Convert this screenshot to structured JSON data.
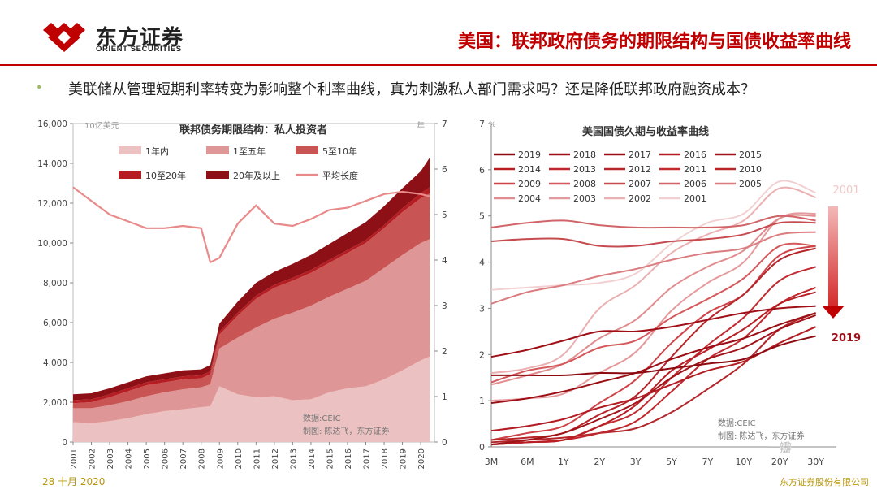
{
  "header": {
    "logo_cn": "东方证券",
    "logo_en": "ORIENT SECURITIES",
    "title": "美国：联邦政府债务的期限结构与国债收益率曲线",
    "bullet": "美联储从管理短期利率转变为影响整个利率曲线，真为刺激私人部门需求吗？还是降低联邦政府融资成本？"
  },
  "footer": {
    "date": "28 十月 2020",
    "company": "东方证券股份有限公司"
  },
  "watermark": "一瓣",
  "colors": {
    "accent": "#c00000",
    "footer": "#b8960c"
  },
  "chart_data": [
    {
      "type": "area",
      "title": "联邦债务期限结构：私人投资者",
      "unit_left": "10亿美元",
      "unit_right": "年",
      "source": "数据:CEIC",
      "credit": "制图: 陈达飞，东方证券",
      "x_ticks": [
        "2001",
        "2002",
        "2003",
        "2004",
        "2005",
        "2006",
        "2007",
        "2008",
        "2009",
        "2010",
        "2011",
        "2012",
        "2013",
        "2014",
        "2015",
        "2016",
        "2017",
        "2018",
        "2019",
        "2020"
      ],
      "y_left_ticks": [
        "0",
        "2,000",
        "4,000",
        "6,000",
        "8,000",
        "10,000",
        "12,000",
        "14,000",
        "16,000"
      ],
      "y_right_ticks": [
        "0",
        "1",
        "2",
        "3",
        "4",
        "5",
        "6",
        "7"
      ],
      "ylim_left": [
        0,
        16000
      ],
      "ylim_right": [
        0,
        7
      ],
      "xlim": [
        2001,
        2020.75
      ],
      "legend": [
        {
          "label": "1年内",
          "color": "#ebc1c1"
        },
        {
          "label": "1至五年",
          "color": "#df9696"
        },
        {
          "label": "5至10年",
          "color": "#c85454"
        },
        {
          "label": "10至20年",
          "color": "#b51d22"
        },
        {
          "label": "20年及以上",
          "color": "#8c1015"
        },
        {
          "label": "平均长度",
          "color": "#e88a8a"
        }
      ],
      "x": [
        2001,
        2002,
        2003,
        2004,
        2005,
        2006,
        2007,
        2008,
        2008.5,
        2009,
        2010,
        2011,
        2012,
        2013,
        2014,
        2015,
        2016,
        2017,
        2018,
        2019,
        2020,
        2020.5
      ],
      "series": [
        {
          "name": "1年内",
          "values": [
            1000,
            950,
            1050,
            1200,
            1400,
            1550,
            1650,
            1750,
            1800,
            2800,
            2400,
            2250,
            2300,
            2100,
            2150,
            2500,
            2700,
            2800,
            3150,
            3600,
            4100,
            4300
          ]
        },
        {
          "name": "1至五年",
          "values": [
            700,
            750,
            800,
            850,
            900,
            950,
            1000,
            1000,
            1100,
            1900,
            2850,
            3500,
            3900,
            4400,
            4700,
            4800,
            5000,
            5300,
            5600,
            5800,
            5900,
            5900
          ]
        },
        {
          "name": "5至10年",
          "values": [
            250,
            300,
            400,
            500,
            550,
            500,
            500,
            450,
            500,
            700,
            1100,
            1450,
            1550,
            1600,
            1650,
            1700,
            1800,
            1900,
            2000,
            2150,
            2250,
            2300
          ]
        },
        {
          "name": "10至20年",
          "values": [
            150,
            150,
            150,
            150,
            150,
            150,
            150,
            150,
            150,
            150,
            150,
            150,
            150,
            150,
            150,
            150,
            150,
            150,
            150,
            200,
            250,
            300
          ]
        },
        {
          "name": "20年及以上",
          "values": [
            300,
            300,
            300,
            300,
            300,
            300,
            300,
            300,
            320,
            400,
            550,
            650,
            650,
            700,
            750,
            800,
            850,
            900,
            950,
            1000,
            1100,
            1500
          ]
        },
        {
          "name": "平均长度",
          "axis": "right",
          "values": [
            5.6,
            5.3,
            5.0,
            4.85,
            4.7,
            4.7,
            4.75,
            4.7,
            3.95,
            4.05,
            4.8,
            5.2,
            4.8,
            4.75,
            4.9,
            5.1,
            5.15,
            5.3,
            5.45,
            5.5,
            5.45,
            5.4
          ]
        }
      ]
    },
    {
      "type": "line",
      "title": "美国国债久期与收益率曲线",
      "unit": "%",
      "source": "数据:CEIC",
      "credit": "制图: 陈达飞，东方证券",
      "categories": [
        "3M",
        "6M",
        "1Y",
        "2Y",
        "3Y",
        "5Y",
        "7Y",
        "10Y",
        "20Y",
        "30Y"
      ],
      "y_ticks": [
        "0",
        "1",
        "2",
        "3",
        "4",
        "5",
        "6",
        "7"
      ],
      "ylim": [
        0,
        7
      ],
      "annotation_top": "2001",
      "annotation_bottom": "2019",
      "series": [
        {
          "name": "2019",
          "color": "#8c0a10",
          "values": [
            1.55,
            1.55,
            1.55,
            1.6,
            1.6,
            1.7,
            1.8,
            1.9,
            2.2,
            2.4
          ]
        },
        {
          "name": "2018",
          "color": "#a10f16",
          "values": [
            1.95,
            2.1,
            2.3,
            2.5,
            2.5,
            2.6,
            2.75,
            2.9,
            3.0,
            3.05
          ]
        },
        {
          "name": "2017",
          "color": "#9a0d13",
          "values": [
            0.95,
            1.05,
            1.2,
            1.4,
            1.6,
            1.9,
            2.15,
            2.35,
            2.65,
            2.9
          ]
        },
        {
          "name": "2016",
          "color": "#b31c22",
          "values": [
            0.35,
            0.45,
            0.6,
            0.85,
            1.05,
            1.35,
            1.65,
            1.85,
            2.25,
            2.6
          ]
        },
        {
          "name": "2015",
          "color": "#a01419",
          "values": [
            0.05,
            0.15,
            0.3,
            0.6,
            0.95,
            1.5,
            1.9,
            2.15,
            2.55,
            2.85
          ]
        },
        {
          "name": "2014",
          "color": "#b81e24",
          "values": [
            0.05,
            0.1,
            0.15,
            0.45,
            0.9,
            1.65,
            2.1,
            2.55,
            3.1,
            3.35
          ]
        },
        {
          "name": "2013",
          "color": "#c0272d",
          "values": [
            0.05,
            0.1,
            0.15,
            0.3,
            0.55,
            1.2,
            1.9,
            2.35,
            3.1,
            3.45
          ]
        },
        {
          "name": "2012",
          "color": "#b3262b",
          "values": [
            0.1,
            0.15,
            0.2,
            0.3,
            0.4,
            0.75,
            1.25,
            1.8,
            2.55,
            2.9
          ]
        },
        {
          "name": "2011",
          "color": "#c02a30",
          "values": [
            0.05,
            0.1,
            0.15,
            0.45,
            0.75,
            1.5,
            2.2,
            2.8,
            3.6,
            3.9
          ]
        },
        {
          "name": "2010",
          "color": "#b5252a",
          "values": [
            0.15,
            0.2,
            0.3,
            0.7,
            1.1,
            1.95,
            2.75,
            3.3,
            4.05,
            4.3
          ]
        },
        {
          "name": "2009",
          "color": "#cd4347",
          "values": [
            0.15,
            0.3,
            0.45,
            0.95,
            1.45,
            2.25,
            2.9,
            3.3,
            4.15,
            4.35
          ]
        },
        {
          "name": "2008",
          "color": "#d5595c",
          "values": [
            1.4,
            1.65,
            1.8,
            2.15,
            2.3,
            2.8,
            3.2,
            3.65,
            4.35,
            4.35
          ]
        },
        {
          "name": "2007",
          "color": "#c54b4f",
          "values": [
            4.45,
            4.5,
            4.5,
            4.35,
            4.35,
            4.45,
            4.5,
            4.6,
            4.85,
            4.85
          ]
        },
        {
          "name": "2006",
          "color": "#d06468",
          "values": [
            4.75,
            4.85,
            4.9,
            4.8,
            4.75,
            4.75,
            4.75,
            4.8,
            5.0,
            4.9
          ]
        },
        {
          "name": "2005",
          "color": "#db7d80",
          "values": [
            3.1,
            3.35,
            3.5,
            3.7,
            3.85,
            4.05,
            4.2,
            4.3,
            4.6,
            4.65
          ]
        },
        {
          "name": "2004",
          "color": "#e18c8f",
          "values": [
            1.35,
            1.55,
            1.8,
            2.35,
            2.75,
            3.45,
            3.9,
            4.25,
            4.95,
            5.0
          ]
        },
        {
          "name": "2003",
          "color": "#e49a9c",
          "values": [
            1.0,
            1.05,
            1.15,
            1.6,
            2.05,
            2.95,
            3.55,
            4.0,
            4.95,
            5.05
          ]
        },
        {
          "name": "2002",
          "color": "#eab0b2",
          "values": [
            1.6,
            1.7,
            2.0,
            3.0,
            3.5,
            4.2,
            4.6,
            4.9,
            5.6,
            5.4
          ]
        },
        {
          "name": "2001",
          "color": "#f2d0d1",
          "values": [
            3.4,
            3.45,
            3.5,
            3.55,
            3.75,
            4.4,
            4.85,
            5.05,
            5.75,
            5.5
          ]
        }
      ]
    }
  ]
}
